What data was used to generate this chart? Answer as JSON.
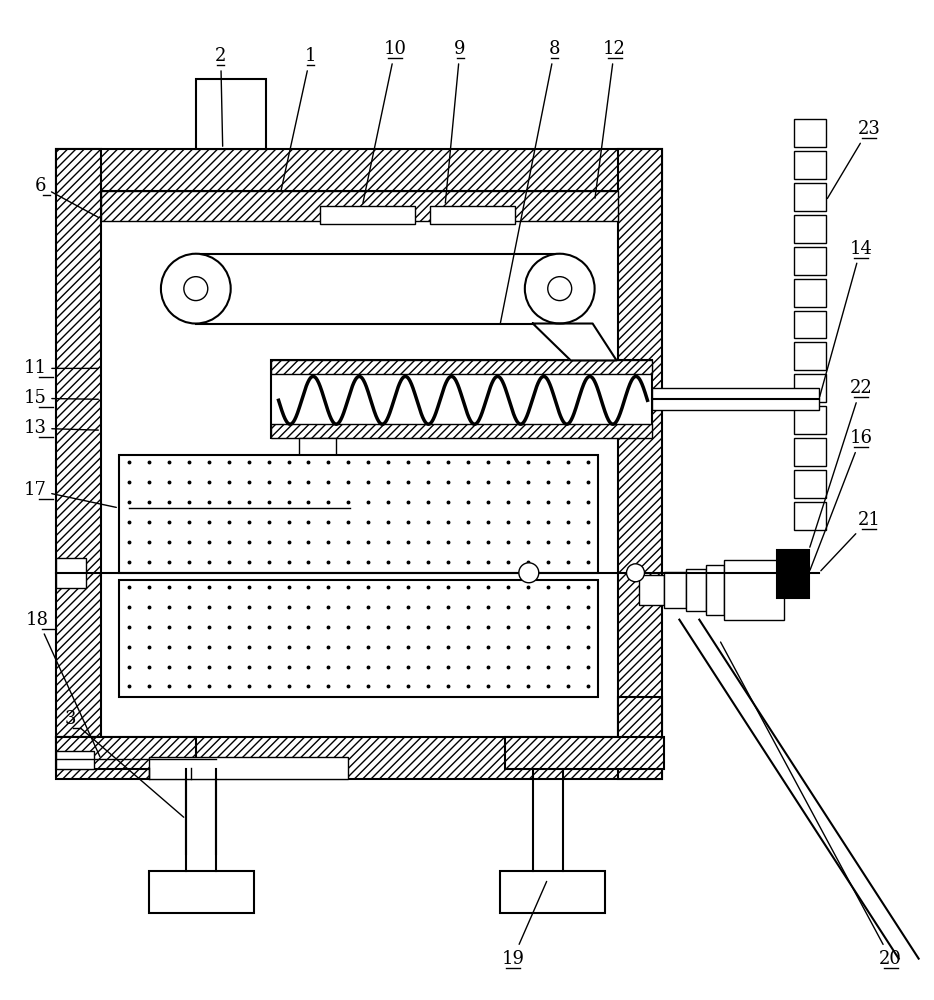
{
  "background": "#ffffff",
  "line_color": "#000000",
  "figsize": [
    9.34,
    10.0
  ],
  "dpi": 100,
  "lw_main": 1.5,
  "lw_thin": 1.0,
  "lw_thick": 2.0
}
